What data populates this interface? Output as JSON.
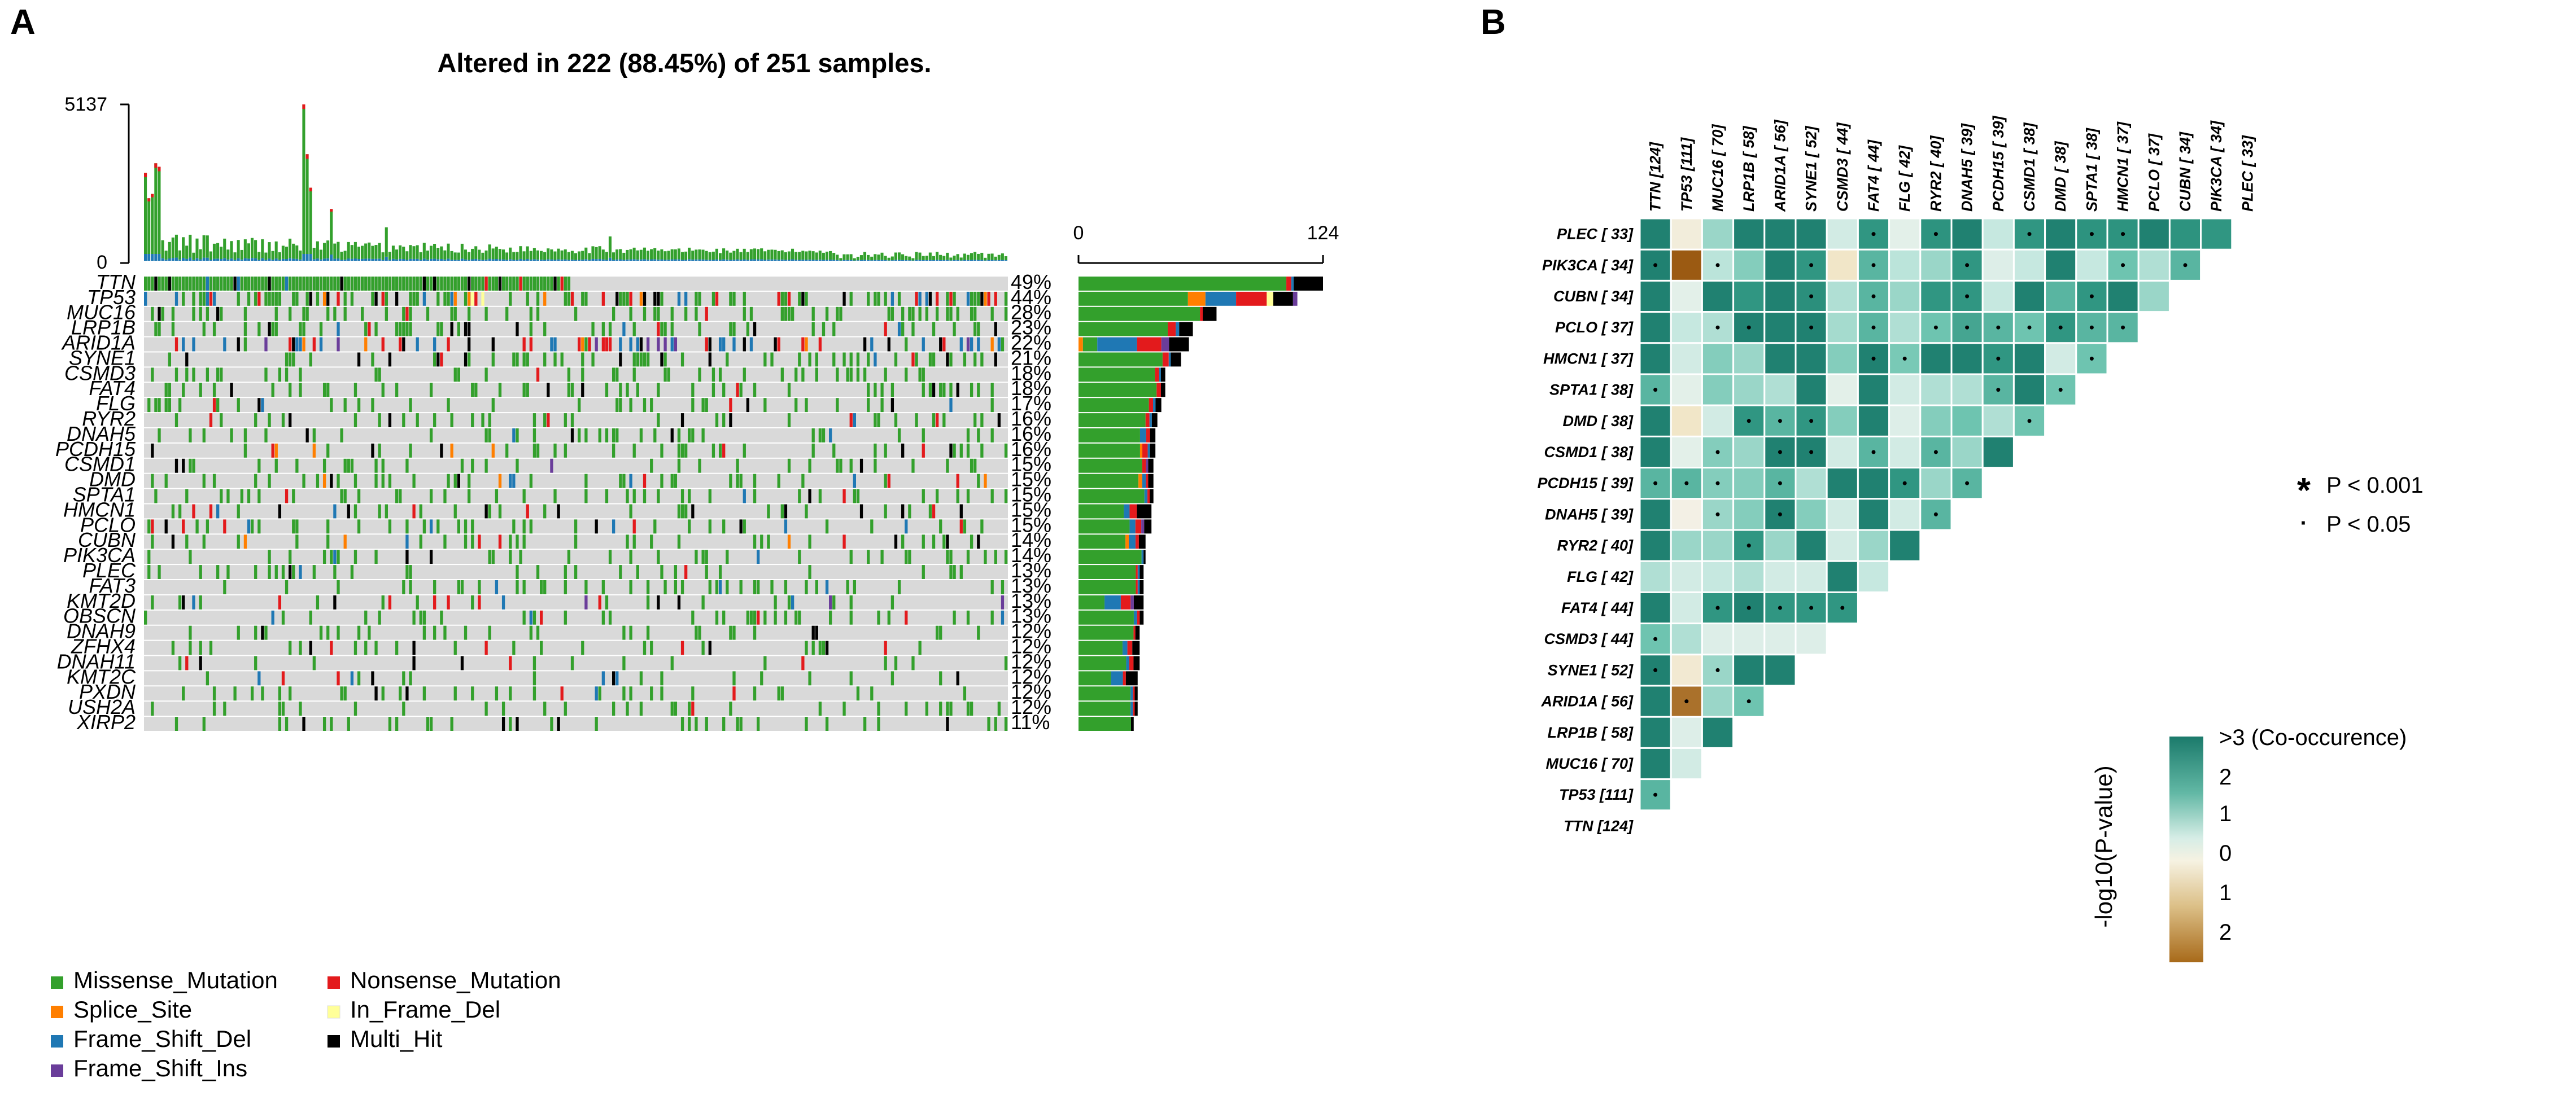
{
  "panels": {
    "a": "A",
    "b": "B"
  },
  "oncoplot": {
    "title": "Altered in 222 (88.45%) of 251 samples.",
    "tmb_axis": {
      "max_label": "5137",
      "min_label": "0"
    },
    "bar_axis": {
      "min_label": "0",
      "max_label": "124"
    },
    "n_samples": 251,
    "genes": [
      {
        "name": "TTN",
        "pct": "49%",
        "n": 124,
        "breakdown": {
          "missense": 0.85,
          "nonsense": 0.02,
          "frame_shift_del": 0.01,
          "multi_hit": 0.12
        }
      },
      {
        "name": "TP53",
        "pct": "44%",
        "n": 111,
        "breakdown": {
          "missense": 0.5,
          "splice_site": 0.08,
          "frame_shift_del": 0.14,
          "nonsense": 0.14,
          "in_frame_del": 0.03,
          "multi_hit": 0.09,
          "frame_shift_ins": 0.02
        }
      },
      {
        "name": "MUC16",
        "pct": "28%",
        "n": 70,
        "breakdown": {
          "missense": 0.88,
          "nonsense": 0.02,
          "multi_hit": 0.1
        }
      },
      {
        "name": "LRP1B",
        "pct": "23%",
        "n": 58,
        "breakdown": {
          "missense": 0.78,
          "nonsense": 0.07,
          "frame_shift_del": 0.03,
          "multi_hit": 0.12
        }
      },
      {
        "name": "ARID1A",
        "pct": "22%",
        "n": 56,
        "breakdown": {
          "splice_site": 0.04,
          "missense": 0.13,
          "frame_shift_del": 0.36,
          "nonsense": 0.22,
          "frame_shift_ins": 0.07,
          "multi_hit": 0.18
        }
      },
      {
        "name": "SYNE1",
        "pct": "21%",
        "n": 52,
        "breakdown": {
          "missense": 0.82,
          "nonsense": 0.06,
          "frame_shift_del": 0.02,
          "multi_hit": 0.1
        }
      },
      {
        "name": "CSMD3",
        "pct": "18%",
        "n": 44,
        "breakdown": {
          "missense": 0.88,
          "nonsense": 0.05,
          "frame_shift_del": 0.02,
          "multi_hit": 0.05
        }
      },
      {
        "name": "FAT4",
        "pct": "18%",
        "n": 44,
        "breakdown": {
          "missense": 0.9,
          "nonsense": 0.05,
          "multi_hit": 0.05
        }
      },
      {
        "name": "FLG",
        "pct": "17%",
        "n": 42,
        "breakdown": {
          "missense": 0.85,
          "nonsense": 0.05,
          "frame_shift_del": 0.03,
          "multi_hit": 0.07
        }
      },
      {
        "name": "RYR2",
        "pct": "16%",
        "n": 40,
        "breakdown": {
          "missense": 0.85,
          "nonsense": 0.05,
          "frame_shift_del": 0.03,
          "multi_hit": 0.07
        }
      },
      {
        "name": "DNAH5",
        "pct": "16%",
        "n": 39,
        "breakdown": {
          "missense": 0.8,
          "frame_shift_del": 0.08,
          "nonsense": 0.05,
          "multi_hit": 0.07
        }
      },
      {
        "name": "PCDH15",
        "pct": "16%",
        "n": 39,
        "breakdown": {
          "missense": 0.8,
          "splice_site": 0.03,
          "nonsense": 0.07,
          "frame_shift_del": 0.03,
          "multi_hit": 0.07
        }
      },
      {
        "name": "CSMD1",
        "pct": "15%",
        "n": 38,
        "breakdown": {
          "missense": 0.85,
          "nonsense": 0.05,
          "frame_shift_ins": 0.03,
          "multi_hit": 0.07
        }
      },
      {
        "name": "DMD",
        "pct": "15%",
        "n": 38,
        "breakdown": {
          "missense": 0.8,
          "splice_site": 0.05,
          "frame_shift_del": 0.05,
          "nonsense": 0.03,
          "multi_hit": 0.07
        }
      },
      {
        "name": "SPTA1",
        "pct": "15%",
        "n": 38,
        "breakdown": {
          "missense": 0.88,
          "frame_shift_del": 0.04,
          "nonsense": 0.03,
          "multi_hit": 0.05
        }
      },
      {
        "name": "HMCN1",
        "pct": "15%",
        "n": 37,
        "breakdown": {
          "missense": 0.62,
          "frame_shift_del": 0.08,
          "nonsense": 0.1,
          "multi_hit": 0.2
        }
      },
      {
        "name": "PCLO",
        "pct": "15%",
        "n": 37,
        "breakdown": {
          "missense": 0.7,
          "frame_shift_del": 0.08,
          "nonsense": 0.08,
          "frame_shift_ins": 0.04,
          "multi_hit": 0.1
        }
      },
      {
        "name": "CUBN",
        "pct": "14%",
        "n": 34,
        "breakdown": {
          "missense": 0.7,
          "splice_site": 0.05,
          "frame_shift_del": 0.1,
          "nonsense": 0.05,
          "multi_hit": 0.1
        }
      },
      {
        "name": "PIK3CA",
        "pct": "14%",
        "n": 34,
        "breakdown": {
          "missense": 0.94,
          "frame_shift_del": 0.03,
          "multi_hit": 0.03
        }
      },
      {
        "name": "PLEC",
        "pct": "13%",
        "n": 33,
        "breakdown": {
          "missense": 0.88,
          "nonsense": 0.03,
          "frame_shift_del": 0.03,
          "multi_hit": 0.06
        }
      },
      {
        "name": "FAT3",
        "pct": "13%",
        "n": 33,
        "breakdown": {
          "missense": 0.88,
          "nonsense": 0.03,
          "frame_shift_del": 0.03,
          "multi_hit": 0.06
        }
      },
      {
        "name": "KMT2D",
        "pct": "13%",
        "n": 33,
        "breakdown": {
          "missense": 0.4,
          "frame_shift_del": 0.25,
          "nonsense": 0.15,
          "frame_shift_ins": 0.05,
          "multi_hit": 0.15
        }
      },
      {
        "name": "OBSCN",
        "pct": "13%",
        "n": 33,
        "breakdown": {
          "missense": 0.85,
          "frame_shift_del": 0.05,
          "nonsense": 0.04,
          "multi_hit": 0.06
        }
      },
      {
        "name": "DNAH9",
        "pct": "12%",
        "n": 31,
        "breakdown": {
          "missense": 0.9,
          "nonsense": 0.03,
          "multi_hit": 0.07
        }
      },
      {
        "name": "ZFHX4",
        "pct": "12%",
        "n": 31,
        "breakdown": {
          "missense": 0.72,
          "frame_shift_del": 0.08,
          "nonsense": 0.08,
          "multi_hit": 0.12
        }
      },
      {
        "name": "DNAH11",
        "pct": "12%",
        "n": 31,
        "breakdown": {
          "missense": 0.78,
          "frame_shift_del": 0.05,
          "nonsense": 0.07,
          "multi_hit": 0.1
        }
      },
      {
        "name": "KMT2C",
        "pct": "12%",
        "n": 30,
        "breakdown": {
          "missense": 0.55,
          "frame_shift_del": 0.2,
          "nonsense": 0.05,
          "multi_hit": 0.2
        }
      },
      {
        "name": "PXDN",
        "pct": "12%",
        "n": 30,
        "breakdown": {
          "missense": 0.88,
          "frame_shift_del": 0.04,
          "nonsense": 0.03,
          "multi_hit": 0.05
        }
      },
      {
        "name": "USH2A",
        "pct": "12%",
        "n": 30,
        "breakdown": {
          "missense": 0.88,
          "frame_shift_del": 0.04,
          "nonsense": 0.03,
          "multi_hit": 0.05
        }
      },
      {
        "name": "XIRP2",
        "pct": "11%",
        "n": 28,
        "breakdown": {
          "missense": 0.95,
          "multi_hit": 0.05
        }
      }
    ],
    "legend": [
      {
        "key": "missense",
        "label": "Missense_Mutation",
        "color": "#33a02c"
      },
      {
        "key": "nonsense",
        "label": "Nonsense_Mutation",
        "color": "#e31a1c"
      },
      {
        "key": "splice_site",
        "label": "Splice_Site",
        "color": "#ff7f00"
      },
      {
        "key": "in_frame_del",
        "label": "In_Frame_Del",
        "color": "#ffff99"
      },
      {
        "key": "frame_shift_del",
        "label": "Frame_Shift_Del",
        "color": "#1f78b4"
      },
      {
        "key": "multi_hit",
        "label": "Multi_Hit",
        "color": "#000000"
      },
      {
        "key": "frame_shift_ins",
        "label": "Frame_Shift_Ins",
        "color": "#6a3d9a"
      }
    ],
    "background_color": "#d9d9d9"
  },
  "chart_data": [
    {
      "type": "bar",
      "title": "Altered in 222 (88.45%) of 251 samples.",
      "categories": [
        "TTN",
        "TP53",
        "MUC16",
        "LRP1B",
        "ARID1A",
        "SYNE1",
        "CSMD3",
        "FAT4",
        "FLG",
        "RYR2",
        "DNAH5",
        "PCDH15",
        "CSMD1",
        "DMD",
        "SPTA1",
        "HMCN1",
        "PCLO",
        "CUBN",
        "PIK3CA",
        "PLEC",
        "FAT3",
        "KMT2D",
        "OBSCN",
        "DNAH9",
        "ZFHX4",
        "DNAH11",
        "KMT2C",
        "PXDN",
        "USH2A",
        "XIRP2"
      ],
      "values": [
        124,
        111,
        70,
        58,
        56,
        52,
        44,
        44,
        42,
        40,
        39,
        39,
        38,
        38,
        38,
        37,
        37,
        34,
        34,
        33,
        33,
        33,
        33,
        31,
        31,
        31,
        30,
        30,
        30,
        28
      ],
      "xlim": [
        0,
        124
      ],
      "xlabel": "",
      "ylabel": ""
    },
    {
      "type": "heatmap",
      "title": "",
      "genes_rows": [
        "PLEC [ 33]",
        "PIK3CA [ 34]",
        "CUBN [ 34]",
        "PCLO [ 37]",
        "HMCN1 [ 37]",
        "SPTA1 [ 38]",
        "DMD [ 38]",
        "CSMD1 [ 38]",
        "PCDH15 [ 39]",
        "DNAH5 [ 39]",
        "RYR2 [ 40]",
        "FLG [ 42]",
        "FAT4 [ 44]",
        "CSMD3 [ 44]",
        "SYNE1 [ 52]",
        "ARID1A [ 56]",
        "LRP1B [ 58]",
        "MUC16 [ 70]",
        "TP53 [111]",
        "TTN [124]"
      ],
      "genes_cols": [
        "TTN [124]",
        "TP53 [111]",
        "MUC16 [ 70]",
        "LRP1B [ 58]",
        "ARID1A [ 56]",
        "SYNE1 [ 52]",
        "CSMD3 [ 44]",
        "FAT4 [ 44]",
        "FLG [ 42]",
        "RYR2 [ 40]",
        "DNAH5 [ 39]",
        "PCDH15 [ 39]",
        "CSMD1 [ 38]",
        "DMD [ 38]",
        "SPTA1 [ 38]",
        "HMCN1 [ 37]",
        "PCLO [ 37]",
        "CUBN [ 34]",
        "PIK3CA [ 34]",
        "PLEC [ 33]"
      ],
      "values": [
        [
          2.8,
          -0.2,
          1.2,
          2.8,
          2.8,
          2.8,
          0.6,
          2.2,
          0.3,
          2.3,
          2.8,
          0.8,
          2.2,
          2.8,
          2.3,
          2.3,
          2.8,
          2.3,
          2.2
        ],
        [
          2.8,
          -3.0,
          0.9,
          1.4,
          2.8,
          2.2,
          -0.4,
          1.8,
          0.9,
          1.2,
          2.2,
          0.4,
          0.8,
          2.8,
          0.8,
          1.6,
          1.0,
          1.8
        ],
        [
          2.8,
          0.3,
          2.8,
          2.2,
          2.8,
          2.4,
          1.0,
          1.8,
          1.2,
          2.2,
          2.2,
          0.8,
          2.8,
          1.8,
          2.2,
          2.8,
          1.2
        ],
        [
          2.8,
          0.8,
          1.0,
          2.8,
          2.8,
          2.8,
          1.1,
          1.8,
          1.0,
          1.6,
          2.0,
          1.8,
          1.6,
          2.2,
          1.8,
          1.8
        ],
        [
          2.8,
          0.6,
          1.4,
          1.2,
          2.8,
          2.8,
          1.4,
          2.8,
          1.5,
          2.8,
          2.8,
          2.2,
          2.8,
          0.6,
          1.6
        ],
        [
          1.8,
          0.3,
          1.4,
          1.2,
          1.0,
          2.8,
          0.3,
          2.8,
          0.6,
          1.0,
          1.0,
          1.8,
          2.8,
          1.6
        ],
        [
          2.8,
          -0.4,
          0.6,
          2.2,
          1.8,
          2.2,
          1.4,
          2.8,
          0.4,
          1.4,
          1.6,
          1.0,
          1.6
        ],
        [
          2.8,
          0.3,
          1.4,
          1.2,
          2.8,
          2.8,
          0.6,
          1.8,
          0.6,
          1.8,
          1.2,
          2.8
        ],
        [
          1.8,
          1.8,
          1.4,
          1.4,
          1.8,
          1.0,
          2.8,
          2.8,
          2.2,
          1.2,
          1.8
        ],
        [
          2.8,
          -0.1,
          1.2,
          1.4,
          2.8,
          1.4,
          0.6,
          2.8,
          0.6,
          1.8
        ],
        [
          2.8,
          1.2,
          1.2,
          2.2,
          1.2,
          2.8,
          0.6,
          1.2,
          2.8
        ],
        [
          1.0,
          0.6,
          0.8,
          1.0,
          0.6,
          0.6,
          2.8,
          0.8
        ],
        [
          2.8,
          0.6,
          2.2,
          2.8,
          2.2,
          2.2,
          2.2
        ],
        [
          1.6,
          1.0,
          0.4,
          0.4,
          0.4,
          0.4
        ],
        [
          2.8,
          -0.3,
          1.2,
          2.8,
          2.8
        ],
        [
          2.8,
          -2.6,
          1.2,
          1.6
        ],
        [
          2.8,
          0.4,
          2.8
        ],
        [
          2.8,
          0.6
        ],
        [
          1.8
        ],
        []
      ],
      "significance": [
        [
          null,
          null,
          null,
          null,
          null,
          null,
          null,
          "dot",
          null,
          "dot",
          null,
          null,
          "dot",
          null,
          "dot",
          "dot",
          null,
          null,
          null
        ],
        [
          "dot",
          null,
          "dot",
          null,
          null,
          "dot",
          null,
          "dot",
          null,
          null,
          "dot",
          null,
          null,
          null,
          null,
          "dot",
          null,
          "dot"
        ],
        [
          null,
          null,
          null,
          null,
          null,
          "dot",
          null,
          "dot",
          null,
          null,
          "dot",
          null,
          null,
          null,
          "dot",
          null,
          null
        ],
        [
          null,
          null,
          "dot",
          "dot",
          null,
          "dot",
          null,
          "dot",
          null,
          "dot",
          "dot",
          "dot",
          "dot",
          "dot",
          "dot",
          "dot"
        ],
        [
          null,
          null,
          null,
          null,
          null,
          null,
          null,
          "dot",
          "dot",
          null,
          null,
          "dot",
          null,
          null,
          "dot"
        ],
        [
          "dot",
          null,
          null,
          null,
          null,
          null,
          null,
          null,
          null,
          null,
          null,
          "dot",
          null,
          "dot"
        ],
        [
          null,
          null,
          null,
          "dot",
          "dot",
          "dot",
          null,
          null,
          null,
          null,
          null,
          null,
          "dot"
        ],
        [
          null,
          null,
          "dot",
          null,
          "dot",
          "dot",
          null,
          "dot",
          null,
          "dot",
          null,
          null
        ],
        [
          "dot",
          "dot",
          "dot",
          null,
          "dot",
          null,
          null,
          null,
          "dot",
          null,
          "dot"
        ],
        [
          null,
          null,
          "dot",
          null,
          "dot",
          null,
          null,
          null,
          null,
          "dot"
        ],
        [
          null,
          null,
          null,
          "dot",
          null,
          null,
          null,
          null,
          null
        ],
        [
          null,
          null,
          null,
          null,
          null,
          null,
          null,
          null
        ],
        [
          null,
          null,
          "dot",
          "dot",
          "dot",
          "dot",
          "dot"
        ],
        [
          "dot",
          null,
          null,
          null,
          null,
          null
        ],
        [
          "dot",
          null,
          "dot",
          null,
          null
        ],
        [
          null,
          "dot",
          null,
          "dot"
        ],
        [
          null,
          null,
          null
        ],
        [
          null,
          null
        ],
        [
          "dot"
        ],
        []
      ],
      "color_scale": {
        "label": "-log10(P-value)",
        "range": [
          -3,
          3
        ],
        "ticks": [
          "2",
          "1",
          "0",
          "1",
          "2"
        ],
        "top_label": ">3 (Co-occurence)",
        "colors": {
          "co_high": "#1b7a6b",
          "neutral": "#f4f4ef",
          "excl_high": "#9b5a12"
        }
      },
      "significance_legend": [
        {
          "symbol": "*",
          "label": "P < 0.001"
        },
        {
          "symbol": "·",
          "label": "P < 0.05"
        }
      ]
    }
  ]
}
